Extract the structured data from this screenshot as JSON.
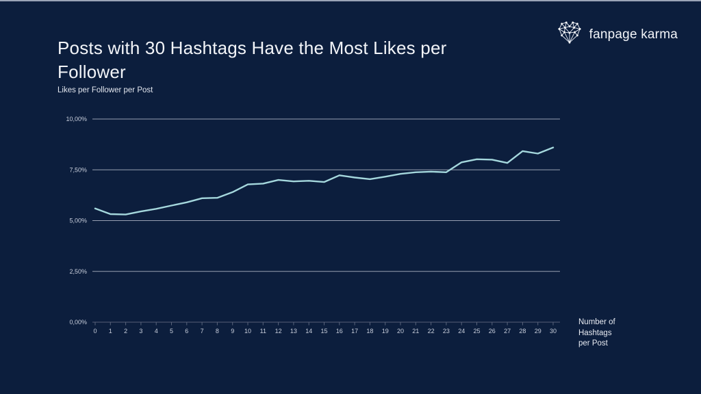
{
  "slide": {
    "title_lines": [
      "Posts with 30 Hashtags Have the Most Likes per",
      "Follower"
    ]
  },
  "logo": {
    "text": "fanpage karma",
    "icon": "network-heart-icon"
  },
  "chart_data": {
    "type": "line",
    "title": "Posts with 30 Hashtags Have the Most Likes per Follower",
    "ylabel": "Likes per Follower per Post",
    "xlabel": "Number of Hashtags per Post",
    "x": [
      0,
      1,
      2,
      3,
      4,
      5,
      6,
      7,
      8,
      9,
      10,
      11,
      12,
      13,
      14,
      15,
      16,
      17,
      18,
      19,
      20,
      21,
      22,
      23,
      24,
      25,
      26,
      27,
      28,
      29,
      30
    ],
    "series": [
      {
        "name": "Likes per Follower per Post",
        "values": [
          5.6,
          5.32,
          5.3,
          5.45,
          5.58,
          5.74,
          5.9,
          6.1,
          6.12,
          6.4,
          6.78,
          6.82,
          7.0,
          6.93,
          6.96,
          6.9,
          7.23,
          7.12,
          7.04,
          7.16,
          7.3,
          7.38,
          7.41,
          7.38,
          7.87,
          8.02,
          8.0,
          7.84,
          8.42,
          8.3,
          8.6
        ]
      }
    ],
    "ylim": [
      0,
      10
    ],
    "yticks": [
      0,
      2.5,
      5,
      7.5,
      10
    ],
    "ytick_labels": [
      "0,00%",
      "2,50%",
      "5,00%",
      "7,50%",
      "10,00%"
    ],
    "grid": true,
    "legend": "none",
    "colors": {
      "background": "#0c1e3d",
      "line": "#a5d8dd",
      "gridline": "#98a0b2",
      "axis_line": "#565f76",
      "tick_mark": "#5a647c",
      "tick_text": "#c9cfdc"
    }
  }
}
